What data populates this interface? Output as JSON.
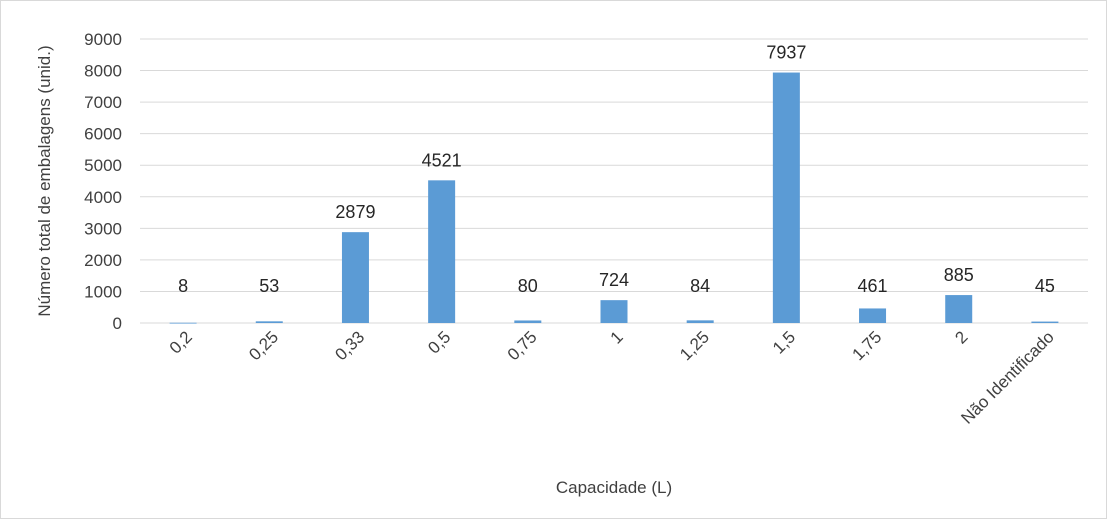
{
  "chart_data": {
    "type": "bar",
    "title": "",
    "xlabel": "Capacidade (L)",
    "ylabel": "Número total de embalagens (unid.)",
    "categories": [
      "0,2",
      "0,25",
      "0,33",
      "0,5",
      "0,75",
      "1",
      "1,25",
      "1,5",
      "1,75",
      "2",
      "Não Identificado"
    ],
    "values": [
      8,
      53,
      2879,
      4521,
      80,
      724,
      84,
      7937,
      461,
      885,
      45
    ],
    "ylim": [
      0,
      9000
    ],
    "yticks": [
      "0",
      "1000",
      "2000",
      "3000",
      "4000",
      "5000",
      "6000",
      "7000",
      "8000",
      "9000"
    ],
    "grid": true,
    "legend": "none",
    "bar_color": "#5b9bd5",
    "grid_color": "#d9d9d9"
  }
}
